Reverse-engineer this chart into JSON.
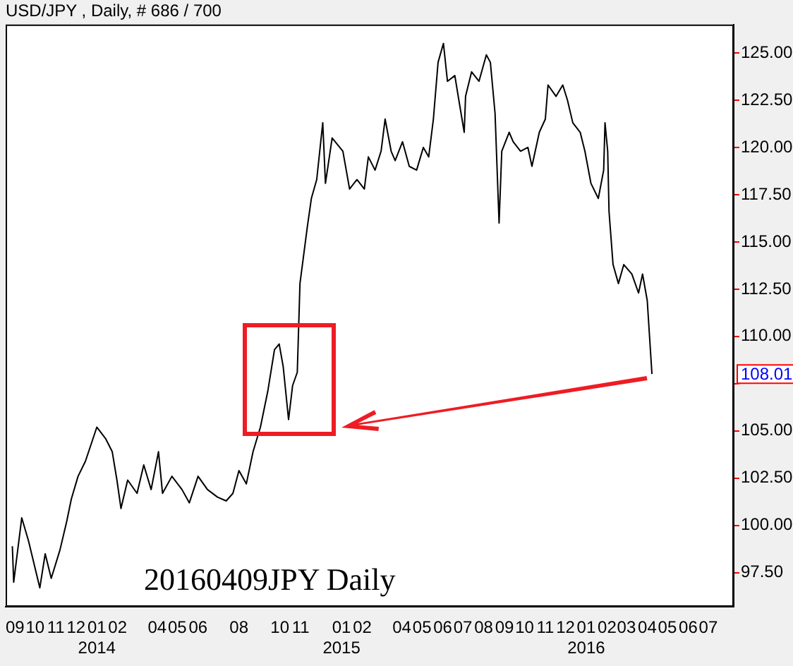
{
  "chart_data": {
    "type": "line",
    "title": "USD/JPY , Daily, # 686 / 700",
    "marker": "none",
    "legend": false,
    "grid": false,
    "xlim": [
      "2013-08-18",
      "2016-08-08"
    ],
    "ylim": [
      95.7,
      126.5
    ],
    "xticks": [
      {
        "value": "2013-09-01",
        "label": "09"
      },
      {
        "value": "2013-10-01",
        "label": "10"
      },
      {
        "value": "2013-11-01",
        "label": "11"
      },
      {
        "value": "2013-12-01",
        "label": "12"
      },
      {
        "value": "2014-01-01",
        "label": "01\n2014"
      },
      {
        "value": "2014-02-01",
        "label": "02"
      },
      {
        "value": "2014-04-01",
        "label": "04"
      },
      {
        "value": "2014-05-01",
        "label": "05"
      },
      {
        "value": "2014-06-01",
        "label": "06"
      },
      {
        "value": "2014-08-01",
        "label": "08"
      },
      {
        "value": "2014-10-01",
        "label": "10"
      },
      {
        "value": "2014-11-01",
        "label": "11"
      },
      {
        "value": "2015-01-01",
        "label": "01\n2015"
      },
      {
        "value": "2015-02-01",
        "label": "02"
      },
      {
        "value": "2015-04-01",
        "label": "04"
      },
      {
        "value": "2015-05-01",
        "label": "05"
      },
      {
        "value": "2015-06-01",
        "label": "06"
      },
      {
        "value": "2015-07-01",
        "label": "07"
      },
      {
        "value": "2015-08-01",
        "label": "08"
      },
      {
        "value": "2015-09-01",
        "label": "09"
      },
      {
        "value": "2015-10-01",
        "label": "10"
      },
      {
        "value": "2015-11-01",
        "label": "11"
      },
      {
        "value": "2015-12-01",
        "label": "12"
      },
      {
        "value": "2016-01-01",
        "label": "01\n2016"
      },
      {
        "value": "2016-02-01",
        "label": "02"
      },
      {
        "value": "2016-03-01",
        "label": "03"
      },
      {
        "value": "2016-04-01",
        "label": "04"
      },
      {
        "value": "2016-05-01",
        "label": "05"
      },
      {
        "value": "2016-06-01",
        "label": "06"
      },
      {
        "value": "2016-07-01",
        "label": "07"
      }
    ],
    "yticks": [
      {
        "value": 97.5,
        "label": "97.50"
      },
      {
        "value": 100,
        "label": "100.00"
      },
      {
        "value": 102.5,
        "label": "102.50"
      },
      {
        "value": 105,
        "label": "105.00"
      },
      {
        "value": 107.5,
        "label": null
      },
      {
        "value": 110,
        "label": "110.00"
      },
      {
        "value": 112.5,
        "label": "112.50"
      },
      {
        "value": 115,
        "label": "115.00"
      },
      {
        "value": 117.5,
        "label": "117.50"
      },
      {
        "value": 120,
        "label": "120.00"
      },
      {
        "value": 122.5,
        "label": "122.50"
      },
      {
        "value": 125,
        "label": "125.00"
      }
    ],
    "annotations": [
      "20160409JPY Daily",
      "108.01"
    ],
    "series": [
      {
        "color": "#000000",
        "x": [
          "2013-08-28",
          "2013-08-30",
          "2013-09-11",
          "2013-09-21",
          "2013-10-08",
          "2013-10-16",
          "2013-10-25",
          "2013-11-07",
          "2013-11-17",
          "2013-11-24",
          "2013-12-04",
          "2013-12-15",
          "2014-01-01",
          "2014-01-14",
          "2014-01-24",
          "2014-01-31",
          "2014-02-06",
          "2014-02-16",
          "2014-03-02",
          "2014-03-12",
          "2014-03-23",
          "2014-04-03",
          "2014-04-09",
          "2014-04-23",
          "2014-05-08",
          "2014-05-19",
          "2014-06-01",
          "2014-06-15",
          "2014-06-30",
          "2014-07-13",
          "2014-07-23",
          "2014-08-01",
          "2014-08-12",
          "2014-08-22",
          "2014-09-02",
          "2014-09-13",
          "2014-09-23",
          "2014-09-30",
          "2014-10-06",
          "2014-10-14",
          "2014-10-20",
          "2014-10-27",
          "2014-10-31",
          "2014-11-11",
          "2014-11-17",
          "2014-11-25",
          "2014-12-04",
          "2014-12-08",
          "2014-12-18",
          "2015-01-03",
          "2015-01-13",
          "2015-01-24",
          "2015-02-04",
          "2015-02-10",
          "2015-02-20",
          "2015-03-01",
          "2015-03-07",
          "2015-03-16",
          "2015-03-22",
          "2015-04-02",
          "2015-04-12",
          "2015-04-23",
          "2015-05-03",
          "2015-05-11",
          "2015-05-18",
          "2015-05-25",
          "2015-06-02",
          "2015-06-08",
          "2015-06-19",
          "2015-06-25",
          "2015-07-03",
          "2015-07-05",
          "2015-07-14",
          "2015-07-25",
          "2015-08-05",
          "2015-08-11",
          "2015-08-18",
          "2015-08-24",
          "2015-08-28",
          "2015-09-08",
          "2015-09-14",
          "2015-09-25",
          "2015-10-06",
          "2015-10-12",
          "2015-10-23",
          "2015-11-01",
          "2015-11-05",
          "2015-11-17",
          "2015-11-27",
          "2015-12-04",
          "2015-12-12",
          "2015-12-23",
          "2015-12-30",
          "2016-01-08",
          "2016-01-19",
          "2016-01-27",
          "2016-01-29",
          "2016-02-02",
          "2016-02-04",
          "2016-02-10",
          "2016-02-18",
          "2016-02-26",
          "2016-03-09",
          "2016-03-19",
          "2016-03-25",
          "2016-04-01",
          "2016-04-08"
        ],
        "values": [
          98.9,
          97.0,
          100.4,
          99.2,
          96.7,
          98.5,
          97.2,
          98.7,
          100.2,
          101.4,
          102.6,
          103.4,
          105.2,
          104.6,
          103.9,
          102.4,
          100.9,
          102.4,
          101.7,
          103.2,
          101.9,
          103.9,
          101.7,
          102.6,
          101.9,
          101.2,
          102.6,
          101.9,
          101.5,
          101.3,
          101.7,
          102.9,
          102.2,
          103.9,
          105.2,
          107.1,
          109.3,
          109.6,
          108.4,
          105.6,
          107.4,
          108.1,
          112.8,
          115.8,
          117.3,
          118.3,
          121.3,
          118.1,
          120.5,
          119.8,
          117.8,
          118.3,
          117.8,
          119.5,
          118.8,
          119.8,
          121.5,
          119.8,
          119.3,
          120.3,
          119.0,
          118.8,
          120.0,
          119.5,
          121.5,
          124.5,
          125.5,
          123.5,
          123.8,
          122.5,
          120.8,
          122.7,
          124.0,
          123.5,
          124.9,
          124.5,
          121.8,
          116.0,
          119.8,
          120.8,
          120.3,
          119.8,
          120.0,
          119.0,
          120.8,
          121.5,
          123.3,
          122.7,
          123.3,
          122.5,
          121.3,
          120.8,
          119.8,
          118.1,
          117.3,
          118.8,
          121.3,
          119.8,
          116.6,
          113.8,
          112.8,
          113.8,
          113.3,
          112.3,
          113.3,
          111.9,
          108.01
        ]
      }
    ]
  }
}
